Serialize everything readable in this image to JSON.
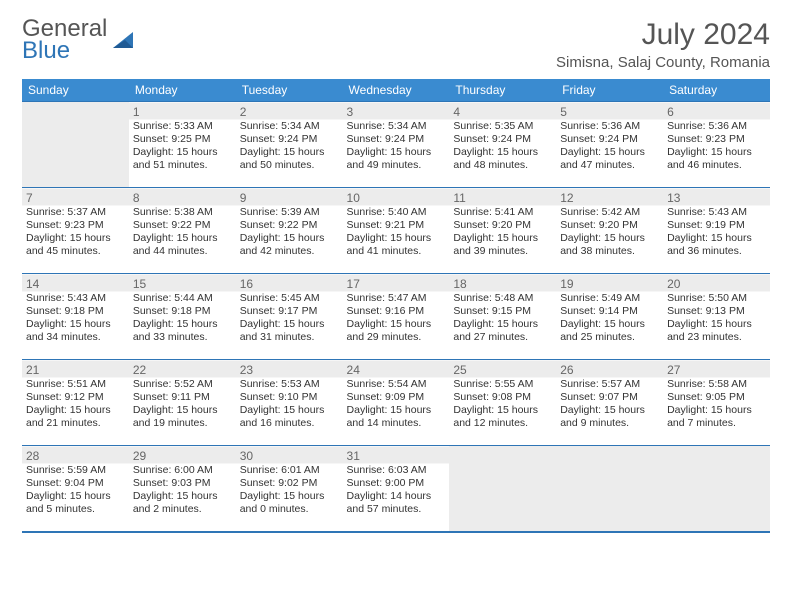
{
  "brand": {
    "line1": "General",
    "line2": "Blue"
  },
  "title": "July 2024",
  "location": "Simisna, Salaj County, Romania",
  "colors": {
    "header_bg": "#3a8bd0",
    "border": "#2e75b6",
    "shade": "#ececec"
  },
  "day_headers": [
    "Sunday",
    "Monday",
    "Tuesday",
    "Wednesday",
    "Thursday",
    "Friday",
    "Saturday"
  ],
  "weeks": [
    [
      null,
      {
        "n": "1",
        "sr": "5:33 AM",
        "ss": "9:25 PM",
        "dl": "15 hours and 51 minutes."
      },
      {
        "n": "2",
        "sr": "5:34 AM",
        "ss": "9:24 PM",
        "dl": "15 hours and 50 minutes."
      },
      {
        "n": "3",
        "sr": "5:34 AM",
        "ss": "9:24 PM",
        "dl": "15 hours and 49 minutes."
      },
      {
        "n": "4",
        "sr": "5:35 AM",
        "ss": "9:24 PM",
        "dl": "15 hours and 48 minutes."
      },
      {
        "n": "5",
        "sr": "5:36 AM",
        "ss": "9:24 PM",
        "dl": "15 hours and 47 minutes."
      },
      {
        "n": "6",
        "sr": "5:36 AM",
        "ss": "9:23 PM",
        "dl": "15 hours and 46 minutes."
      }
    ],
    [
      {
        "n": "7",
        "sr": "5:37 AM",
        "ss": "9:23 PM",
        "dl": "15 hours and 45 minutes."
      },
      {
        "n": "8",
        "sr": "5:38 AM",
        "ss": "9:22 PM",
        "dl": "15 hours and 44 minutes."
      },
      {
        "n": "9",
        "sr": "5:39 AM",
        "ss": "9:22 PM",
        "dl": "15 hours and 42 minutes."
      },
      {
        "n": "10",
        "sr": "5:40 AM",
        "ss": "9:21 PM",
        "dl": "15 hours and 41 minutes."
      },
      {
        "n": "11",
        "sr": "5:41 AM",
        "ss": "9:20 PM",
        "dl": "15 hours and 39 minutes."
      },
      {
        "n": "12",
        "sr": "5:42 AM",
        "ss": "9:20 PM",
        "dl": "15 hours and 38 minutes."
      },
      {
        "n": "13",
        "sr": "5:43 AM",
        "ss": "9:19 PM",
        "dl": "15 hours and 36 minutes."
      }
    ],
    [
      {
        "n": "14",
        "sr": "5:43 AM",
        "ss": "9:18 PM",
        "dl": "15 hours and 34 minutes."
      },
      {
        "n": "15",
        "sr": "5:44 AM",
        "ss": "9:18 PM",
        "dl": "15 hours and 33 minutes."
      },
      {
        "n": "16",
        "sr": "5:45 AM",
        "ss": "9:17 PM",
        "dl": "15 hours and 31 minutes."
      },
      {
        "n": "17",
        "sr": "5:47 AM",
        "ss": "9:16 PM",
        "dl": "15 hours and 29 minutes."
      },
      {
        "n": "18",
        "sr": "5:48 AM",
        "ss": "9:15 PM",
        "dl": "15 hours and 27 minutes."
      },
      {
        "n": "19",
        "sr": "5:49 AM",
        "ss": "9:14 PM",
        "dl": "15 hours and 25 minutes."
      },
      {
        "n": "20",
        "sr": "5:50 AM",
        "ss": "9:13 PM",
        "dl": "15 hours and 23 minutes."
      }
    ],
    [
      {
        "n": "21",
        "sr": "5:51 AM",
        "ss": "9:12 PM",
        "dl": "15 hours and 21 minutes."
      },
      {
        "n": "22",
        "sr": "5:52 AM",
        "ss": "9:11 PM",
        "dl": "15 hours and 19 minutes."
      },
      {
        "n": "23",
        "sr": "5:53 AM",
        "ss": "9:10 PM",
        "dl": "15 hours and 16 minutes."
      },
      {
        "n": "24",
        "sr": "5:54 AM",
        "ss": "9:09 PM",
        "dl": "15 hours and 14 minutes."
      },
      {
        "n": "25",
        "sr": "5:55 AM",
        "ss": "9:08 PM",
        "dl": "15 hours and 12 minutes."
      },
      {
        "n": "26",
        "sr": "5:57 AM",
        "ss": "9:07 PM",
        "dl": "15 hours and 9 minutes."
      },
      {
        "n": "27",
        "sr": "5:58 AM",
        "ss": "9:05 PM",
        "dl": "15 hours and 7 minutes."
      }
    ],
    [
      {
        "n": "28",
        "sr": "5:59 AM",
        "ss": "9:04 PM",
        "dl": "15 hours and 5 minutes."
      },
      {
        "n": "29",
        "sr": "6:00 AM",
        "ss": "9:03 PM",
        "dl": "15 hours and 2 minutes."
      },
      {
        "n": "30",
        "sr": "6:01 AM",
        "ss": "9:02 PM",
        "dl": "15 hours and 0 minutes."
      },
      {
        "n": "31",
        "sr": "6:03 AM",
        "ss": "9:00 PM",
        "dl": "14 hours and 57 minutes."
      },
      null,
      null,
      null
    ]
  ]
}
